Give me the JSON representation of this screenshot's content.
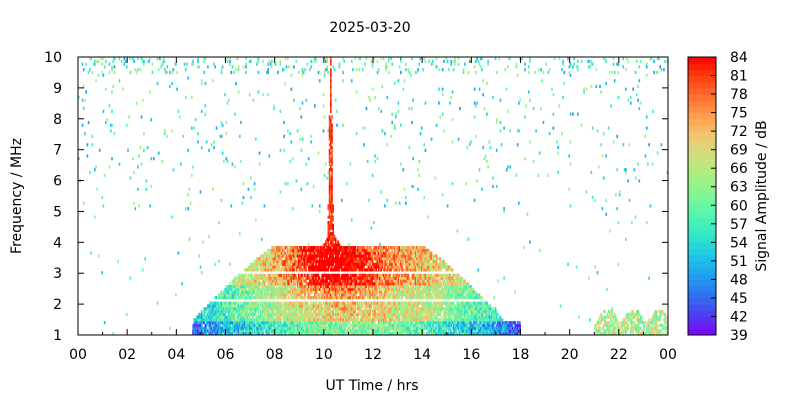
{
  "chart_data": {
    "type": "heatmap",
    "title": "2025-03-20",
    "xlabel": "UT Time / hrs",
    "ylabel": "Frequency / MHz",
    "colorbar_label": "Signal Amplitude / dB",
    "x_ticks": [
      "00",
      "02",
      "04",
      "06",
      "08",
      "10",
      "12",
      "14",
      "16",
      "18",
      "20",
      "22",
      "00"
    ],
    "xlim": [
      0,
      24
    ],
    "y_ticks": [
      "1",
      "2",
      "3",
      "4",
      "5",
      "6",
      "7",
      "8",
      "9",
      "10"
    ],
    "ylim": [
      1,
      10
    ],
    "colorbar_ticks": [
      "39",
      "42",
      "45",
      "48",
      "51",
      "54",
      "57",
      "60",
      "63",
      "66",
      "69",
      "72",
      "75",
      "78",
      "81",
      "84"
    ],
    "value_range": [
      39,
      84
    ],
    "colormap": [
      "#8000ff",
      "#4f3cf0",
      "#2e71f0",
      "#1e9ff0",
      "#1ec8e6",
      "#30e6c8",
      "#52f5b0",
      "#7ff59a",
      "#a6f080",
      "#cfe080",
      "#f0c870",
      "#ffa050",
      "#ff7030",
      "#ff4010",
      "#ff0000"
    ],
    "grid": false,
    "features": [
      {
        "name": "daytime absorption band",
        "time_range": [
          4.6,
          18.0
        ],
        "freq_range": [
          1.0,
          3.4
        ],
        "peak_time": 10.3,
        "peak_freq": 4.3,
        "typical_amplitude": [
          50,
          70
        ],
        "peak_amplitude": 80
      },
      {
        "name": "narrow burst",
        "time": 10.25,
        "freq_range": [
          4.0,
          10.0
        ],
        "amplitude": 84
      },
      {
        "name": "sparse upper noise",
        "time_range": [
          0,
          24
        ],
        "freq_range": [
          5.0,
          10.0
        ],
        "amplitude": [
          48,
          66
        ]
      },
      {
        "name": "evening patch",
        "time_range": [
          21.0,
          24.0
        ],
        "freq_range": [
          1.0,
          1.8
        ],
        "amplitude": [
          57,
          72
        ]
      }
    ]
  }
}
